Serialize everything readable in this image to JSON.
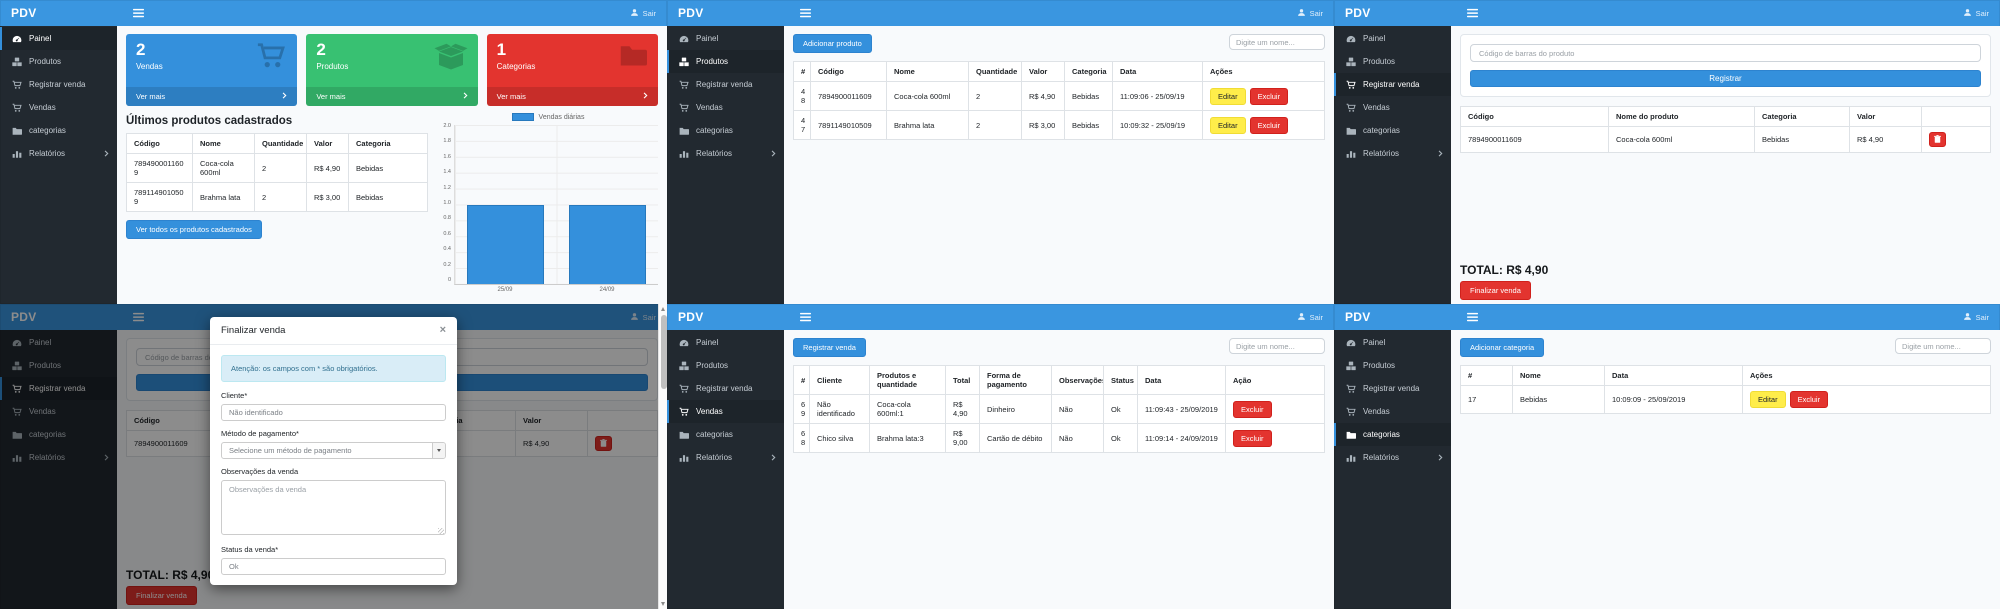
{
  "app": {
    "brand": "PDV",
    "logout_label": "Sair"
  },
  "labels": {
    "edit": "Editar",
    "delete": "Excluir",
    "see_more": "Ver mais",
    "search_placeholder": "Digite um nome..."
  },
  "colors": {
    "primary": "#3490dc",
    "navbar": "#3a96e0",
    "sidebar_bg": "#222930",
    "success": "#38c172",
    "danger": "#e3342f",
    "warning": "#ffed4a"
  },
  "sidebar": {
    "items": [
      {
        "label": "Painel",
        "icon": "gauge-icon"
      },
      {
        "label": "Produtos",
        "icon": "boxes-icon"
      },
      {
        "label": "Registrar venda",
        "icon": "cart-icon"
      },
      {
        "label": "Vendas",
        "icon": "cart-icon"
      },
      {
        "label": "categorias",
        "icon": "folder-icon"
      },
      {
        "label": "Relatórios",
        "icon": "bar-chart-icon",
        "has_submenu": true
      }
    ]
  },
  "dashboard": {
    "cards": [
      {
        "value": "2",
        "label": "Vendas",
        "color": "#3490dc",
        "icon": "cart-icon"
      },
      {
        "value": "2",
        "label": "Produtos",
        "color": "#38c172",
        "icon": "open-box-icon"
      },
      {
        "value": "1",
        "label": "Categorias",
        "color": "#e3342f",
        "icon": "folder-icon"
      }
    ],
    "section_title": "Últimos produtos cadastrados",
    "table": {
      "headers": [
        "Código",
        "Nome",
        "Quantidade",
        "Valor",
        "Categoria"
      ],
      "rows": [
        {
          "cells": [
            "7894900011609",
            "Coca-cola 600ml",
            "2",
            "R$ 4,90",
            "Bebidas"
          ]
        },
        {
          "cells": [
            "7891149010509",
            "Brahma lata",
            "2",
            "R$ 3,00",
            "Bebidas"
          ]
        }
      ]
    },
    "see_all_button": "Ver todos os produtos cadastrados"
  },
  "chart_data": {
    "type": "bar",
    "title": "Vendas diárias",
    "legend": [
      "Vendas diárias"
    ],
    "legend_position": "top",
    "categories": [
      "25/09",
      "24/09"
    ],
    "values": [
      1,
      1
    ],
    "ylim": [
      0,
      2
    ],
    "yticks": [
      "2.0",
      "1.8",
      "1.6",
      "1.4",
      "1.2",
      "1.0",
      "0.8",
      "0.6",
      "0.4",
      "0.2",
      "0"
    ],
    "grid": true,
    "bar_color": "#3490dc"
  },
  "products": {
    "add_button": "Adicionar produto",
    "table": {
      "headers": [
        "#",
        "Código",
        "Nome",
        "Quantidade",
        "Valor",
        "Categoria",
        "Data",
        "Ações"
      ],
      "rows": [
        {
          "cells": [
            "48",
            "7894900011609",
            "Coca-cola 600ml",
            "2",
            "R$ 4,90",
            "Bebidas",
            "11:09:06 - 25/09/19"
          ]
        },
        {
          "cells": [
            "47",
            "7891149010509",
            "Brahma lata",
            "2",
            "R$ 3,00",
            "Bebidas",
            "10:09:32 - 25/09/19"
          ]
        }
      ]
    }
  },
  "register_sale": {
    "barcode_placeholder": "Código de barras do produto",
    "register_button": "Registrar",
    "table": {
      "headers": [
        "Código",
        "Nome do produto",
        "Categoria",
        "Valor",
        ""
      ],
      "rows": [
        {
          "cells": [
            "7894900011609",
            "Coca-cola 600ml",
            "Bebidas",
            "R$ 4,90"
          ]
        }
      ]
    },
    "total_label": "TOTAL: R$ 4,90",
    "finish_button": "Finalizar venda"
  },
  "finish_modal": {
    "title": "Finalizar venda",
    "close": "×",
    "alert": "Atenção: os campos com * são obrigatórios.",
    "client_label": "Cliente*",
    "client_value": "Não identificado",
    "payment_label": "Método de pagamento*",
    "payment_placeholder": "Selecione um método de pagamento",
    "obs_label": "Observações da venda",
    "obs_placeholder": "Observações da venda",
    "status_label": "Status da venda*",
    "status_value": "Ok"
  },
  "sales": {
    "register_button": "Registrar venda",
    "table": {
      "headers": [
        "#",
        "Cliente",
        "Produtos e quantidade",
        "Total",
        "Forma de pagamento",
        "Observações",
        "Status",
        "Data",
        "Ação"
      ],
      "rows": [
        {
          "cells": [
            "69",
            "Não identificado",
            "Coca-cola 600ml:1",
            "R$ 4,90",
            "Dinheiro",
            "Não",
            "Ok",
            "11:09:43 - 25/09/2019"
          ]
        },
        {
          "cells": [
            "68",
            "Chico silva",
            "Brahma lata:3",
            "R$ 9,00",
            "Cartão de débito",
            "Não",
            "Ok",
            "11:09:14 - 24/09/2019"
          ]
        }
      ]
    }
  },
  "categories": {
    "add_button": "Adicionar categoria",
    "table": {
      "headers": [
        "#",
        "Nome",
        "Data",
        "Ações"
      ],
      "rows": [
        {
          "cells": [
            "17",
            "Bebidas",
            "10:09:09 - 25/09/2019"
          ]
        }
      ]
    }
  }
}
